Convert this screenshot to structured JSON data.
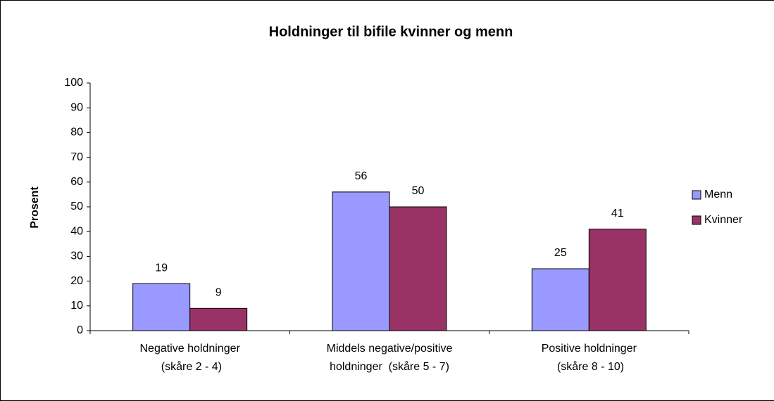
{
  "chart_data": {
    "type": "bar",
    "title": "Holdninger til bifile kvinner og menn",
    "y_label": "Prosent",
    "categories": [
      "Negative holdninger\n (skåre 2 - 4)",
      "Middels negative/positive\nholdninger  (skåre 5 - 7)",
      "Positive holdninger\n (skåre 8 - 10)"
    ],
    "series": [
      {
        "name": "Menn",
        "color": "#9999ff",
        "values": [
          19,
          56,
          25
        ]
      },
      {
        "name": "Kvinner",
        "color": "#993366",
        "values": [
          9,
          50,
          41
        ]
      }
    ],
    "ylim": [
      0,
      100
    ],
    "yticks": [
      0,
      10,
      20,
      30,
      40,
      50,
      60,
      70,
      80,
      90,
      100
    ],
    "legend": "right"
  }
}
